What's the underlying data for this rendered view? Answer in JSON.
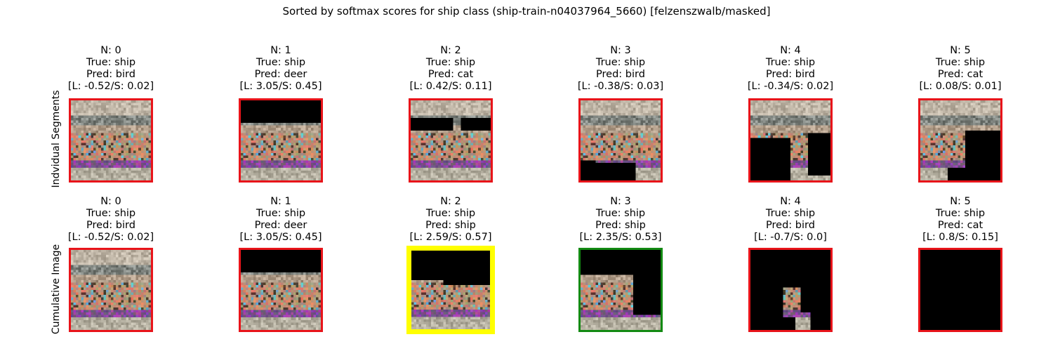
{
  "figure": {
    "title": "Sorted by softmax scores for ship class (ship-train-n04037964_5660) [felzenszwalb/masked]",
    "rows": [
      {
        "label": "Indvidual Segments",
        "panels": [
          {
            "n": "N: 0",
            "true": "True: ship",
            "pred": "Pred: bird",
            "scores": "[L: -0.52/S: 0.02]",
            "border": "#e8141a",
            "mask": "full"
          },
          {
            "n": "N: 1",
            "true": "True: ship",
            "pred": "Pred: deer",
            "scores": "[L: 3.05/S: 0.45]",
            "border": "#e8141a",
            "mask": "top-black"
          },
          {
            "n": "N: 2",
            "true": "True: ship",
            "pred": "Pred: cat",
            "scores": "[L: 0.42/S: 0.11]",
            "border": "#e8141a",
            "mask": "middle-black"
          },
          {
            "n": "N: 3",
            "true": "True: ship",
            "pred": "Pred: bird",
            "scores": "[L: -0.38/S: 0.03]",
            "border": "#e8141a",
            "mask": "bottom-black"
          },
          {
            "n": "N: 4",
            "true": "True: ship",
            "pred": "Pred: bird",
            "scores": "[L: -0.34/S: 0.02]",
            "border": "#e8141a",
            "mask": "lower-left-black"
          },
          {
            "n": "N: 5",
            "true": "True: ship",
            "pred": "Pred: cat",
            "scores": "[L: 0.08/S: 0.01]",
            "border": "#e8141a",
            "mask": "right-black"
          }
        ]
      },
      {
        "label": "Cumulative Image",
        "panels": [
          {
            "n": "N: 0",
            "true": "True: ship",
            "pred": "Pred: bird",
            "scores": "[L: -0.52/S: 0.02]",
            "border": "#e8141a",
            "mask": "full"
          },
          {
            "n": "N: 1",
            "true": "True: ship",
            "pred": "Pred: deer",
            "scores": "[L: 3.05/S: 0.45]",
            "border": "#e8141a",
            "mask": "top-black"
          },
          {
            "n": "N: 2",
            "true": "True: ship",
            "pred": "Pred: ship",
            "scores": "[L: 2.59/S: 0.57]",
            "border": "#ffff00",
            "mask": "top-black-large"
          },
          {
            "n": "N: 3",
            "true": "True: ship",
            "pred": "Pred: ship",
            "scores": "[L: 2.35/S: 0.53]",
            "border": "#138a13",
            "mask": "top-right-black"
          },
          {
            "n": "N: 4",
            "true": "True: ship",
            "pred": "Pred: bird",
            "scores": "[L: -0.7/S: 0.0]",
            "border": "#e8141a",
            "mask": "small-fragment"
          },
          {
            "n": "N: 5",
            "true": "True: ship",
            "pred": "Pred: cat",
            "scores": "[L: 0.8/S: 0.15]",
            "border": "#e8141a",
            "mask": "all-black"
          }
        ]
      }
    ]
  }
}
